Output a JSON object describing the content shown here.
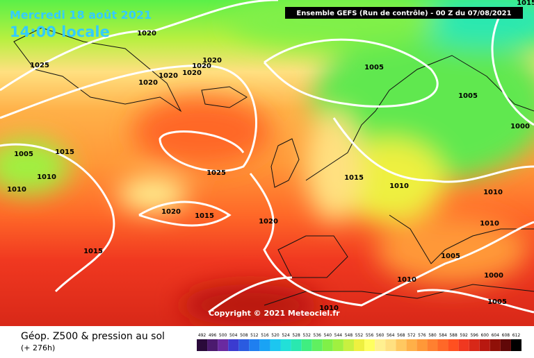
{
  "header": {
    "date": "Mercredi 18 août 2021",
    "time": "14:00 locale",
    "run": "Ensemble GEFS  (Run de contrôle)  -  00 Z du 07/08/2021"
  },
  "isobars": [
    "1015",
    "1020",
    "1025",
    "1020",
    "1020",
    "1020",
    "1020",
    "1020",
    "1005",
    "1005",
    "1000",
    "1005",
    "1015",
    "1010",
    "1010",
    "1025",
    "1015",
    "1010",
    "1010",
    "1020",
    "1015",
    "1020",
    "1010",
    "1015",
    "1005",
    "1010",
    "1000",
    "1005",
    "1010"
  ],
  "copyright": "Copyright © 2021 Meteociel.fr",
  "footer": {
    "title": "Géop. Z500 & pression au sol",
    "subtitle": "(+ 276h)"
  },
  "scale": {
    "labels": [
      "492",
      "496",
      "500",
      "504",
      "508",
      "512",
      "516",
      "520",
      "524",
      "528",
      "532",
      "536",
      "540",
      "544",
      "548",
      "552",
      "556",
      "560",
      "564",
      "568",
      "572",
      "576",
      "580",
      "584",
      "588",
      "592",
      "596",
      "600",
      "604",
      "608",
      "612"
    ],
    "colors": [
      "#2a0a3a",
      "#4b1a6e",
      "#6a2aa0",
      "#3b3bd0",
      "#2a5be0",
      "#1f7ff0",
      "#19a3f5",
      "#1cc6f0",
      "#22e0d8",
      "#2ae8b0",
      "#40ee80",
      "#60f060",
      "#80f048",
      "#a0f040",
      "#c8f040",
      "#eef040",
      "#ffff60",
      "#fff090",
      "#ffe080",
      "#ffc860",
      "#ffb048",
      "#ff9838",
      "#ff8030",
      "#ff6828",
      "#ff5020",
      "#f03820",
      "#d82818",
      "#b81810",
      "#901008",
      "#600808",
      "#000000"
    ]
  }
}
